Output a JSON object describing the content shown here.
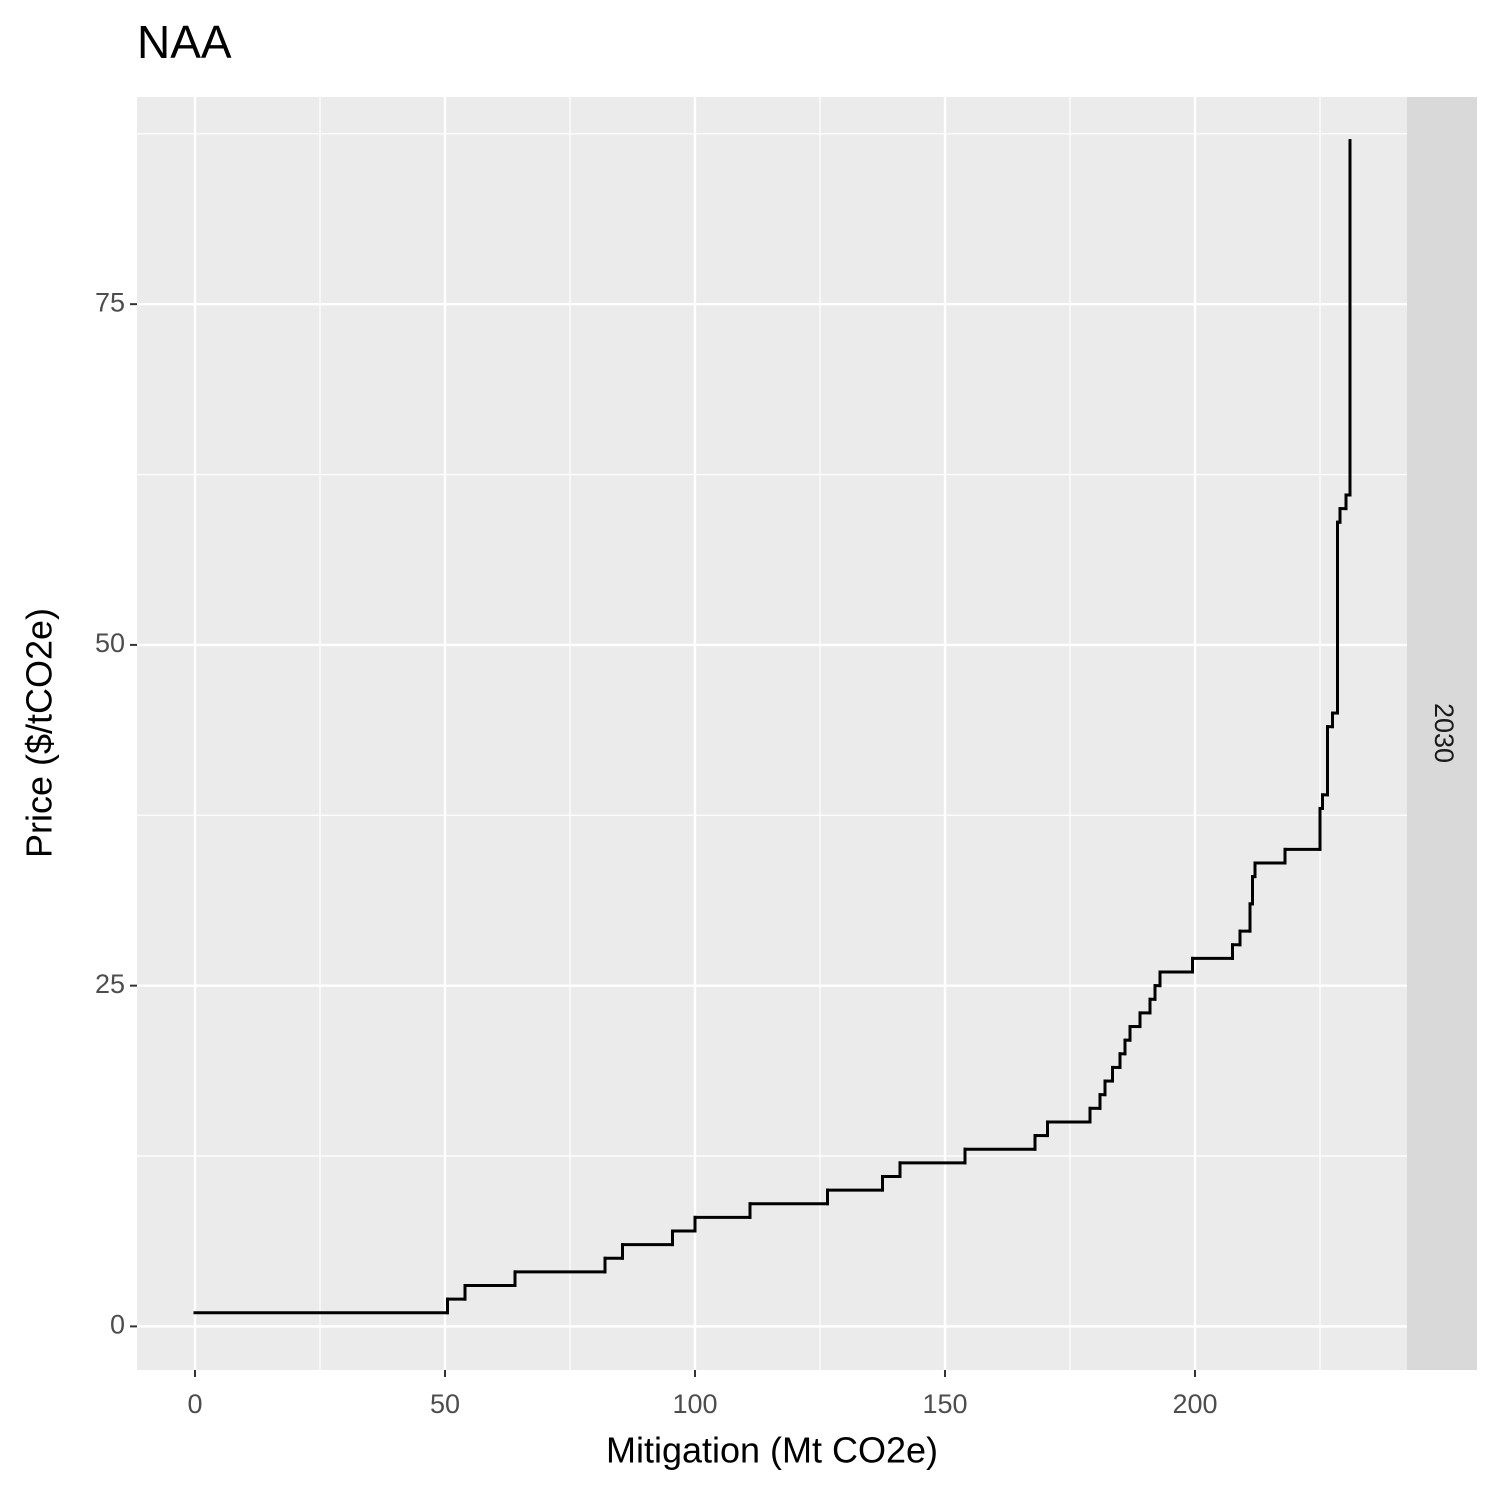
{
  "chart_data": {
    "type": "step",
    "title": "NAA",
    "facet": "2030",
    "x_label": "Mitigation (Mt CO2e)",
    "y_label": "Price ($/tCO2e)",
    "x": [
      0,
      50.5,
      54,
      64,
      82,
      85.5,
      95.5,
      100,
      111,
      126.5,
      137.5,
      141,
      154,
      168,
      170.5,
      179,
      181,
      182,
      183.5,
      185,
      186,
      187,
      189,
      191,
      192,
      193,
      199.5,
      207.5,
      209,
      211,
      211.5,
      212,
      218,
      225,
      225.5,
      226.5,
      227.5,
      228.5,
      229,
      230.2,
      231
    ],
    "values": [
      1,
      2,
      3,
      4,
      5,
      6,
      7,
      8,
      9,
      10,
      11,
      12,
      13,
      14,
      15,
      16,
      17,
      18,
      19,
      20,
      21,
      22,
      23,
      24,
      25,
      26,
      27,
      28,
      29,
      31,
      33,
      34,
      35,
      38,
      39,
      44,
      45,
      59,
      60,
      61,
      87
    ],
    "color": "#000000",
    "xlim": [
      -11.6,
      242.4
    ],
    "xticks": [
      0,
      50,
      100,
      150,
      200
    ],
    "ylim": [
      -3.2,
      90.2
    ],
    "yticks": [
      0,
      25,
      50,
      75
    ],
    "grid": true
  }
}
